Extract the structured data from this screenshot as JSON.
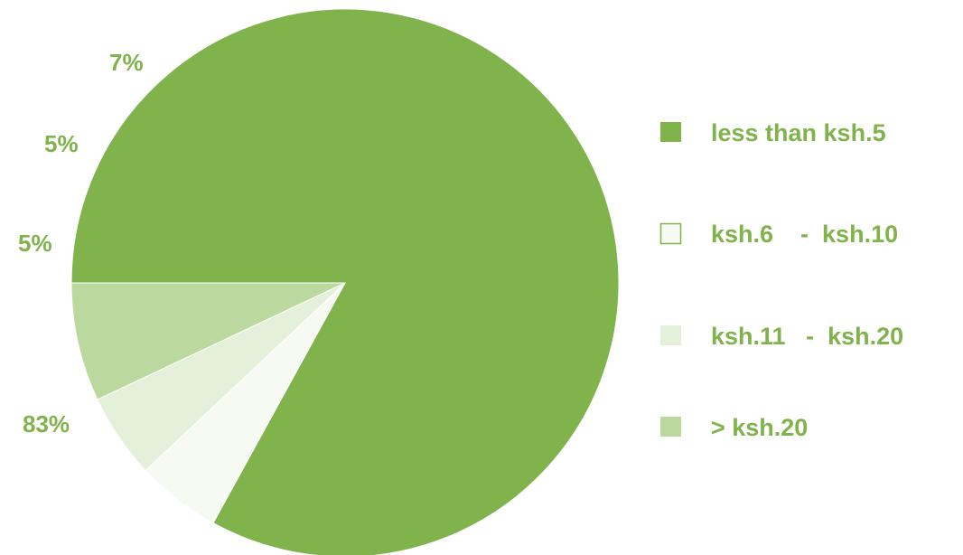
{
  "chart_data": {
    "type": "pie",
    "title": "",
    "start": "9 o'clock, clockwise",
    "slices": [
      {
        "label": "less than ksh.5",
        "value": 83,
        "value_label": "83%",
        "color": "#80b34c"
      },
      {
        "label": "ksh.6    -  ksh.10",
        "value": 5,
        "value_label": "5%",
        "color": "#f7faf2"
      },
      {
        "label": "ksh.11   -  ksh.20",
        "value": 5,
        "value_label": "5%",
        "color": "#e5f0da"
      },
      {
        "label": "> ksh.20",
        "value": 7,
        "value_label": "7%",
        "color": "#bbd89f"
      }
    ],
    "legend": {
      "position": "right"
    },
    "label_color": "#80b34c"
  }
}
